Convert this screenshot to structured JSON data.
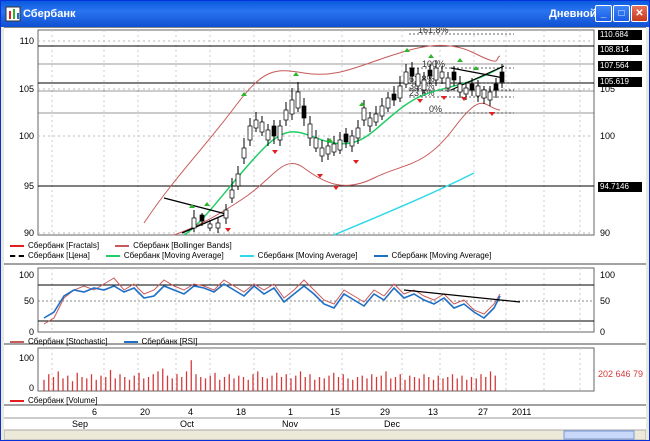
{
  "window": {
    "title": "Сбербанк",
    "period": "Дневной",
    "buttons": {
      "minimize": "_",
      "maximize": "□",
      "close": "✕"
    }
  },
  "price_panel": {
    "y_ticks": [
      "110",
      "105",
      "100",
      "95",
      "90"
    ],
    "right_ticks": [
      "105",
      "100",
      "95",
      "90"
    ],
    "price_boxes": [
      "110.684",
      "108.814",
      "107.564",
      "105.619",
      "94.7146"
    ],
    "fib_labels": [
      "161.8%",
      "100%",
      "61.8%",
      "38.2%",
      "23.6%",
      "0%"
    ],
    "legend": [
      {
        "label": "Сбербанк [Fractals]",
        "color": "#e41e1e",
        "dashed": false
      },
      {
        "label": "Сбербанк [Bollinger Bands]",
        "color": "#c85a5a",
        "dashed": false
      },
      {
        "label": "Сбербанк [Цена]",
        "color": "#000000",
        "dashed": true
      },
      {
        "label": "Сбербанк [Moving Average]",
        "color": "#22cc66",
        "dashed": false
      },
      {
        "label": "Сбербанк [Moving Average]",
        "color": "#30d8e8",
        "dashed": false
      },
      {
        "label": "Сбербанк [Moving Average]",
        "color": "#1e6fc8",
        "dashed": false
      }
    ]
  },
  "oscillator_panel": {
    "y_ticks": [
      "100",
      "50",
      "0"
    ],
    "right_ticks": [
      "100",
      "50",
      "0"
    ],
    "legend": [
      {
        "label": "Сбербанк [Stochastic]",
        "color": "#c85a5a"
      },
      {
        "label": "Сбербанк [RSI]",
        "color": "#1e6fc8"
      }
    ]
  },
  "volume_panel": {
    "y_ticks": [
      "100",
      "0"
    ],
    "last_volume": "202 646 79",
    "legend": [
      {
        "label": "Сбербанк [Volume]",
        "color": "#e41e1e"
      }
    ]
  },
  "time_axis": {
    "days": [
      "6",
      "20",
      "4",
      "18",
      "1",
      "15",
      "29",
      "13",
      "27",
      "2011"
    ],
    "months": [
      "Sep",
      "Oct",
      "Nov",
      "Dec"
    ]
  },
  "colors": {
    "titlebar": "#0a5bdf",
    "fractal_up": "#2db52d",
    "fractal_down": "#e41e1e",
    "bollinger": "#c85a5a",
    "ma_fast": "#22cc66",
    "ma_slow": "#30d8e8",
    "rsi": "#1e6fc8",
    "volume": "#d33a3a"
  }
}
